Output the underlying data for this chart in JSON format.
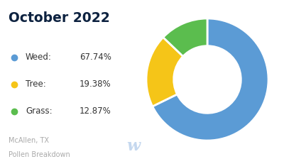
{
  "title": "October 2022",
  "labels": [
    "Weed",
    "Tree",
    "Grass"
  ],
  "values": [
    67.74,
    19.38,
    12.87
  ],
  "colors": [
    "#5B9BD5",
    "#F5C518",
    "#5BBD4E"
  ],
  "legend_names": [
    "Weed",
    "Tree",
    "Grass"
  ],
  "legend_pcts": [
    "67.74%",
    "19.38%",
    "12.87%"
  ],
  "footer_line1": "McAllen, TX",
  "footer_line2": "Pollen Breakdown",
  "background_color": "#ffffff",
  "title_color": "#0d2240",
  "footer_color": "#aaaaaa",
  "watermark_color": "#c5d8ef",
  "donut_width": 0.45
}
